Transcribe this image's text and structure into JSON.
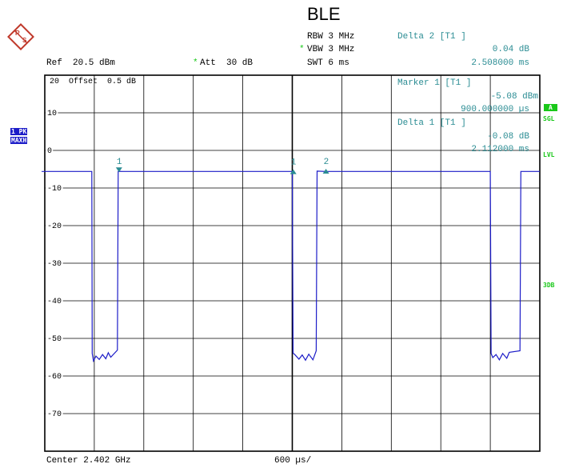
{
  "title": "BLE",
  "header": {
    "ref": "Ref  20.5 dBm",
    "att_star": "*",
    "att": "Att  30 dB",
    "rbw": "RBW 3 MHz",
    "vbw_star": "*",
    "vbw": "VBW 3 MHz",
    "swt": "SWT 6 ms"
  },
  "delta2": {
    "label": "Delta 2 [T1 ]",
    "value1": "0.04 dB",
    "value2": "2.508000 ms"
  },
  "marker1": {
    "label": "Marker 1 [T1 ]",
    "value1": "-5.08 dBm",
    "value2": "900.000000 µs"
  },
  "delta1": {
    "label": "Delta 1 [T1 ]",
    "value1": "-0.08 dB",
    "value2": "2.112000 ms"
  },
  "offset_text": "20  Offset  0.5 dB",
  "left_tags": {
    "trace": "1 PK",
    "mode": "MAXH"
  },
  "right_tags": {
    "a": "A",
    "sgl": "SGL",
    "lvl": "LVL",
    "3db": "3DB"
  },
  "footer": {
    "center": "Center 2.402 GHz",
    "span": "600 µs/"
  },
  "colors": {
    "trace": "#1c1cc8",
    "marker": "#2a8c93",
    "grid": "#000000"
  },
  "logo_icon": "rohde-schwarz-logo",
  "chart_data": {
    "type": "line",
    "ylabel": "dBm",
    "xunit": "µs",
    "ylim": [
      -79.5,
      20.5
    ],
    "xlim": [
      0,
      6000
    ],
    "y_ticks": [
      "10",
      "0",
      "-10",
      "-20",
      "-30",
      "-40",
      "-50",
      "-60",
      "-70"
    ],
    "series": [
      {
        "x": [
          0,
          570,
          575,
          590,
          620,
          660,
          700,
          740,
          770,
          800,
          880,
          890,
          900,
          950,
          2000,
          3000,
          3010,
          3030,
          3080,
          3120,
          3160,
          3200,
          3250,
          3290,
          3300,
          3400,
          4500,
          5000,
          5400,
          5410,
          5430,
          5470,
          5510,
          5550,
          5600,
          5630,
          5760,
          5770,
          6000
        ],
        "y": [
          -5.1,
          -5.1,
          -53.5,
          -55.5,
          -54.2,
          -55.1,
          -53.8,
          -54.9,
          -53.3,
          -54.5,
          -52.6,
          -5.1,
          -5.08,
          -5.1,
          -5.1,
          -5.1,
          -53.4,
          -53.8,
          -55.0,
          -53.9,
          -55.3,
          -53.7,
          -55.2,
          -52.8,
          -5.0,
          -5.1,
          -5.1,
          -5.1,
          -5.1,
          -53.5,
          -54.6,
          -53.8,
          -55.2,
          -53.5,
          -54.8,
          -53.2,
          -52.8,
          -5.1,
          -5.1
        ]
      }
    ],
    "markers": [
      {
        "label": "1",
        "x": 900,
        "y": -5.08,
        "shape": "down"
      },
      {
        "label": "1",
        "x": 3012,
        "y": -5.16,
        "shape": "up"
      },
      {
        "label": "2",
        "x": 3408,
        "y": -5.04,
        "shape": "up"
      }
    ]
  }
}
